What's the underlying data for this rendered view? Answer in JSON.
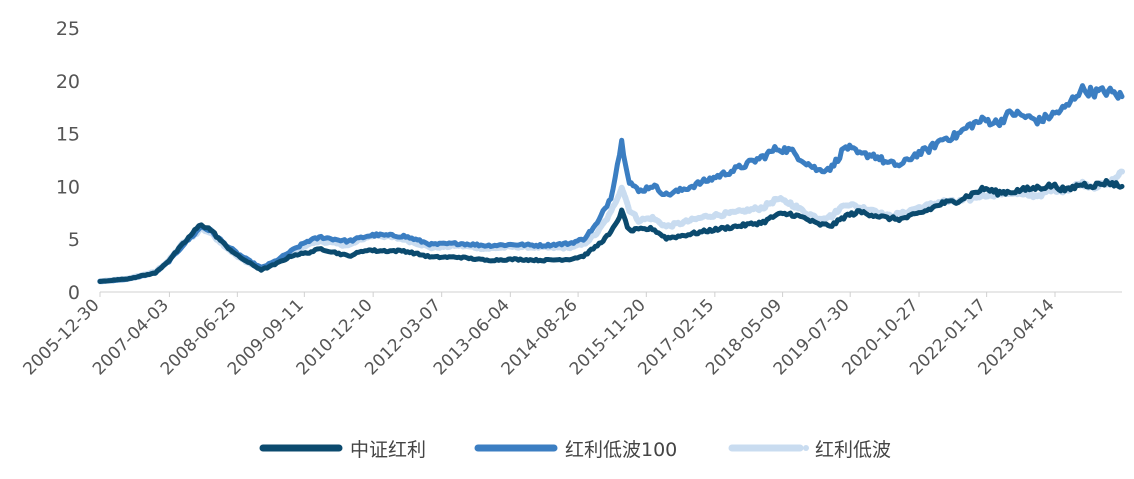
{
  "chart_data": {
    "type": "line",
    "title": "",
    "xlabel": "",
    "ylabel": "",
    "ylim": [
      0,
      25
    ],
    "yticks": [
      0,
      5,
      10,
      15,
      20,
      25
    ],
    "x_range": [
      "2005-12-30",
      "2024-06-30"
    ],
    "xtick_labels": [
      "2005-12-30",
      "2007-04-03",
      "2008-06-25",
      "2009-09-11",
      "2010-12-10",
      "2012-03-07",
      "2013-06-04",
      "2014-08-26",
      "2015-11-20",
      "2017-02-15",
      "2018-05-09",
      "2019-07-30",
      "2020-10-27",
      "2022-01-17",
      "2023-04-14"
    ],
    "grid": false,
    "legend_position": "bottom",
    "series": [
      {
        "name": "中证红利",
        "color": "#0b4a6e",
        "style": "solid",
        "points": [
          [
            "2005-12-30",
            1.0
          ],
          [
            "2006-06-30",
            1.25
          ],
          [
            "2006-12-31",
            1.8
          ],
          [
            "2007-03-31",
            3.0
          ],
          [
            "2007-06-30",
            4.5
          ],
          [
            "2007-09-30",
            6.0
          ],
          [
            "2007-10-31",
            6.4
          ],
          [
            "2007-12-31",
            5.9
          ],
          [
            "2008-03-31",
            4.5
          ],
          [
            "2008-06-30",
            3.4
          ],
          [
            "2008-09-30",
            2.6
          ],
          [
            "2008-11-30",
            2.1
          ],
          [
            "2009-02-28",
            2.6
          ],
          [
            "2009-06-30",
            3.5
          ],
          [
            "2009-09-30",
            3.7
          ],
          [
            "2009-12-31",
            4.1
          ],
          [
            "2010-06-30",
            3.4
          ],
          [
            "2010-10-31",
            4.0
          ],
          [
            "2010-12-31",
            3.9
          ],
          [
            "2011-06-30",
            3.9
          ],
          [
            "2011-12-31",
            3.3
          ],
          [
            "2012-06-30",
            3.3
          ],
          [
            "2012-12-31",
            3.0
          ],
          [
            "2013-06-30",
            3.1
          ],
          [
            "2013-12-31",
            3.0
          ],
          [
            "2014-06-30",
            3.1
          ],
          [
            "2014-09-30",
            3.4
          ],
          [
            "2014-12-31",
            4.4
          ],
          [
            "2015-03-31",
            5.6
          ],
          [
            "2015-06-10",
            7.6
          ],
          [
            "2015-07-31",
            5.8
          ],
          [
            "2015-09-30",
            5.9
          ],
          [
            "2015-12-31",
            6.0
          ],
          [
            "2016-03-31",
            5.1
          ],
          [
            "2016-06-30",
            5.3
          ],
          [
            "2016-12-31",
            5.8
          ],
          [
            "2017-06-30",
            6.2
          ],
          [
            "2017-12-31",
            6.6
          ],
          [
            "2018-03-31",
            7.3
          ],
          [
            "2018-06-30",
            7.4
          ],
          [
            "2018-09-30",
            7.0
          ],
          [
            "2018-12-31",
            6.4
          ],
          [
            "2019-03-31",
            6.3
          ],
          [
            "2019-06-30",
            7.2
          ],
          [
            "2019-09-30",
            7.6
          ],
          [
            "2019-12-31",
            7.3
          ],
          [
            "2020-03-31",
            7.0
          ],
          [
            "2020-06-30",
            6.9
          ],
          [
            "2020-09-30",
            7.3
          ],
          [
            "2020-12-31",
            7.8
          ],
          [
            "2021-03-31",
            8.4
          ],
          [
            "2021-06-30",
            8.6
          ],
          [
            "2021-09-30",
            9.2
          ],
          [
            "2021-12-31",
            9.8
          ],
          [
            "2022-03-31",
            9.4
          ],
          [
            "2022-06-30",
            9.5
          ],
          [
            "2022-09-30",
            9.7
          ],
          [
            "2022-12-31",
            9.9
          ],
          [
            "2023-03-31",
            10.1
          ],
          [
            "2023-06-30",
            9.6
          ],
          [
            "2023-09-30",
            10.2
          ],
          [
            "2023-12-31",
            10.1
          ],
          [
            "2024-03-31",
            10.4
          ],
          [
            "2024-06-30",
            10.0
          ]
        ]
      },
      {
        "name": "红利低波100",
        "color": "#3b7ec2",
        "style": "solid",
        "points": [
          [
            "2005-12-30",
            1.0
          ],
          [
            "2006-06-30",
            1.2
          ],
          [
            "2006-12-31",
            1.8
          ],
          [
            "2007-03-31",
            2.9
          ],
          [
            "2007-06-30",
            4.4
          ],
          [
            "2007-09-30",
            5.7
          ],
          [
            "2007-10-31",
            6.2
          ],
          [
            "2007-12-31",
            5.8
          ],
          [
            "2008-03-31",
            4.6
          ],
          [
            "2008-06-30",
            3.6
          ],
          [
            "2008-09-30",
            2.8
          ],
          [
            "2008-11-30",
            2.3
          ],
          [
            "2009-02-28",
            2.9
          ],
          [
            "2009-06-30",
            4.0
          ],
          [
            "2009-09-30",
            4.8
          ],
          [
            "2009-12-31",
            5.2
          ],
          [
            "2010-06-30",
            4.8
          ],
          [
            "2010-10-31",
            5.3
          ],
          [
            "2010-12-31",
            5.4
          ],
          [
            "2011-06-30",
            5.3
          ],
          [
            "2011-12-31",
            4.5
          ],
          [
            "2012-06-30",
            4.6
          ],
          [
            "2012-12-31",
            4.4
          ],
          [
            "2013-06-30",
            4.5
          ],
          [
            "2013-12-31",
            4.4
          ],
          [
            "2014-06-30",
            4.6
          ],
          [
            "2014-09-30",
            5.0
          ],
          [
            "2014-12-31",
            6.5
          ],
          [
            "2015-03-31",
            9.0
          ],
          [
            "2015-06-10",
            14.2
          ],
          [
            "2015-07-31",
            10.5
          ],
          [
            "2015-09-30",
            9.5
          ],
          [
            "2015-12-31",
            10.1
          ],
          [
            "2016-03-31",
            9.2
          ],
          [
            "2016-06-30",
            9.6
          ],
          [
            "2016-12-31",
            10.6
          ],
          [
            "2017-06-30",
            11.6
          ],
          [
            "2017-12-31",
            12.8
          ],
          [
            "2018-03-31",
            13.6
          ],
          [
            "2018-06-30",
            13.4
          ],
          [
            "2018-09-30",
            12.4
          ],
          [
            "2018-12-31",
            11.5
          ],
          [
            "2019-03-31",
            11.8
          ],
          [
            "2019-06-30",
            13.8
          ],
          [
            "2019-09-30",
            13.0
          ],
          [
            "2019-12-31",
            13.0
          ],
          [
            "2020-03-31",
            12.2
          ],
          [
            "2020-06-30",
            12.0
          ],
          [
            "2020-09-30",
            13.0
          ],
          [
            "2020-12-31",
            13.5
          ],
          [
            "2021-03-31",
            14.5
          ],
          [
            "2021-06-30",
            14.8
          ],
          [
            "2021-09-30",
            15.8
          ],
          [
            "2021-12-31",
            16.3
          ],
          [
            "2022-03-31",
            16.0
          ],
          [
            "2022-06-30",
            17.0
          ],
          [
            "2022-09-30",
            16.6
          ],
          [
            "2022-12-31",
            16.2
          ],
          [
            "2023-03-31",
            16.8
          ],
          [
            "2023-06-30",
            17.5
          ],
          [
            "2023-09-30",
            19.2
          ],
          [
            "2023-12-31",
            18.9
          ],
          [
            "2024-03-31",
            19.0
          ],
          [
            "2024-06-30",
            18.5
          ]
        ]
      },
      {
        "name": "红利低波",
        "color": "#c9dcf0",
        "style": "dotted",
        "points": [
          [
            "2005-12-30",
            1.0
          ],
          [
            "2006-06-30",
            1.25
          ],
          [
            "2006-12-31",
            1.9
          ],
          [
            "2007-03-31",
            3.0
          ],
          [
            "2007-06-30",
            4.6
          ],
          [
            "2007-09-30",
            5.6
          ],
          [
            "2007-10-31",
            6.0
          ],
          [
            "2007-12-31",
            5.6
          ],
          [
            "2008-03-31",
            4.4
          ],
          [
            "2008-06-30",
            3.3
          ],
          [
            "2008-09-30",
            2.6
          ],
          [
            "2008-11-30",
            2.2
          ],
          [
            "2009-02-28",
            2.7
          ],
          [
            "2009-06-30",
            3.8
          ],
          [
            "2009-09-30",
            4.5
          ],
          [
            "2009-12-31",
            4.8
          ],
          [
            "2010-06-30",
            4.4
          ],
          [
            "2010-10-31",
            5.2
          ],
          [
            "2010-12-31",
            5.4
          ],
          [
            "2011-06-30",
            5.0
          ],
          [
            "2011-12-31",
            4.2
          ],
          [
            "2012-06-30",
            4.4
          ],
          [
            "2012-12-31",
            4.1
          ],
          [
            "2013-06-30",
            4.3
          ],
          [
            "2013-12-31",
            4.2
          ],
          [
            "2014-06-30",
            4.2
          ],
          [
            "2014-09-30",
            4.5
          ],
          [
            "2014-12-31",
            5.6
          ],
          [
            "2015-03-31",
            7.5
          ],
          [
            "2015-06-10",
            10.0
          ],
          [
            "2015-07-31",
            7.8
          ],
          [
            "2015-09-30",
            6.8
          ],
          [
            "2015-12-31",
            7.0
          ],
          [
            "2016-03-31",
            6.2
          ],
          [
            "2016-06-30",
            6.5
          ],
          [
            "2016-12-31",
            7.2
          ],
          [
            "2017-06-30",
            7.5
          ],
          [
            "2017-12-31",
            8.0
          ],
          [
            "2018-03-31",
            8.8
          ],
          [
            "2018-06-30",
            8.4
          ],
          [
            "2018-09-30",
            7.6
          ],
          [
            "2018-12-31",
            7.0
          ],
          [
            "2019-03-31",
            7.2
          ],
          [
            "2019-06-30",
            8.4
          ],
          [
            "2019-09-30",
            8.0
          ],
          [
            "2019-12-31",
            7.8
          ],
          [
            "2020-03-31",
            7.2
          ],
          [
            "2020-06-30",
            7.4
          ],
          [
            "2020-09-30",
            7.9
          ],
          [
            "2020-12-31",
            8.2
          ],
          [
            "2021-03-31",
            8.6
          ],
          [
            "2021-06-30",
            8.5
          ],
          [
            "2021-09-30",
            8.8
          ],
          [
            "2021-12-31",
            9.2
          ],
          [
            "2022-03-31",
            9.3
          ],
          [
            "2022-06-30",
            9.4
          ],
          [
            "2022-09-30",
            9.1
          ],
          [
            "2022-12-31",
            9.2
          ],
          [
            "2023-03-31",
            9.6
          ],
          [
            "2023-06-30",
            9.7
          ],
          [
            "2023-09-30",
            10.3
          ],
          [
            "2023-12-31",
            10.0
          ],
          [
            "2024-03-31",
            10.2
          ],
          [
            "2024-06-30",
            11.4
          ]
        ]
      }
    ]
  }
}
